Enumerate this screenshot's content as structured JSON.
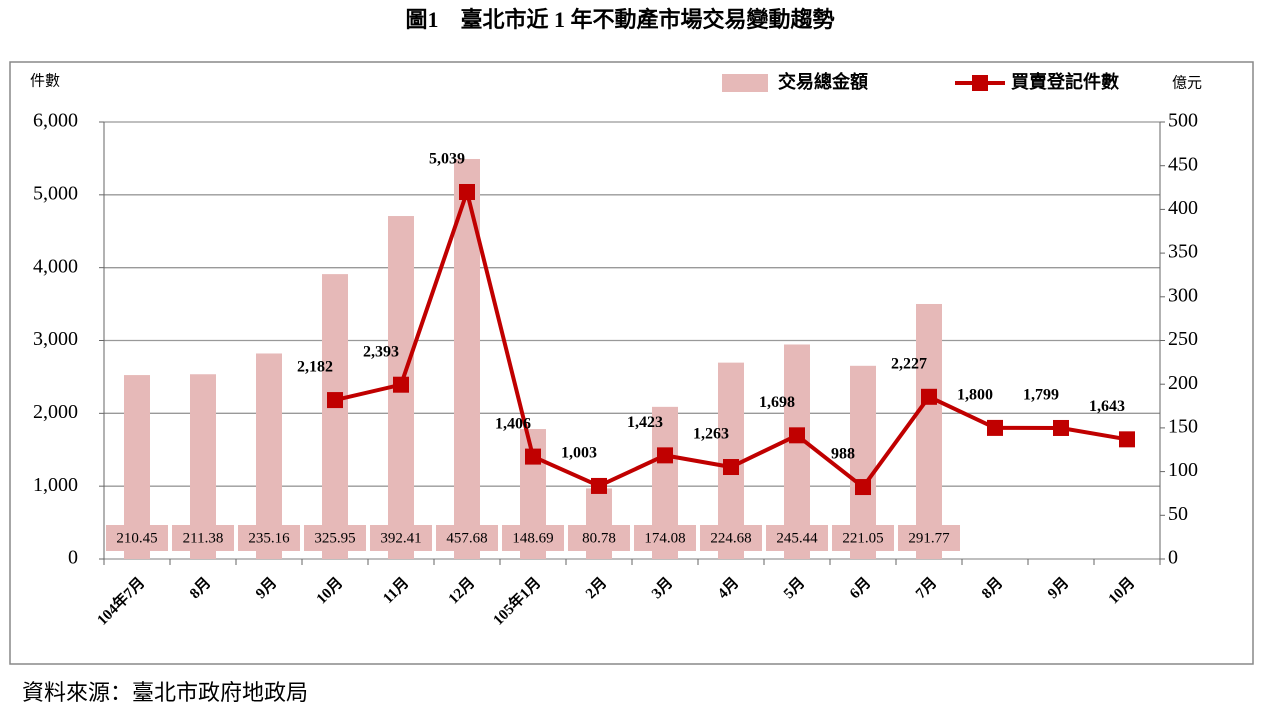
{
  "chart_data": {
    "type": "combo",
    "title": "圖1　臺北市近 1 年不動產市場交易變動趨勢",
    "source": "資料來源：臺北市政府地政局",
    "y_label": "件數",
    "y2_label": "億元",
    "categories": [
      "104年7月",
      "8月",
      "9月",
      "10月",
      "11月",
      "12月",
      "105年1月",
      "2月",
      "3月",
      "4月",
      "5月",
      "6月",
      "7月",
      "8月",
      "9月",
      "10月"
    ],
    "series": [
      {
        "name": "交易總金額",
        "type": "bar",
        "axis": "y2",
        "color": "#e6b9b8",
        "values": [
          210.45,
          211.38,
          235.16,
          325.95,
          392.41,
          457.68,
          148.69,
          80.78,
          174.08,
          224.68,
          245.44,
          221.05,
          291.77,
          null,
          null,
          null
        ]
      },
      {
        "name": "買賣登記件數",
        "type": "line",
        "color": "#c00000",
        "values": [
          null,
          null,
          null,
          2182,
          2393,
          5039,
          1406,
          1003,
          1423,
          1263,
          1698,
          988,
          2227,
          1800,
          1799,
          1643
        ],
        "value_labels": [
          null,
          null,
          null,
          "2,182",
          "2,393",
          "5,039",
          "1,406",
          "1,003",
          "1,423",
          "1,263",
          "1,698",
          "988",
          "2,227",
          "1,800",
          "1,799",
          "1,643"
        ]
      }
    ],
    "ylim": [
      0,
      6000
    ],
    "yticks": [
      0,
      {
        "value": 1000,
        "label": "1,000"
      },
      {
        "value": 2000,
        "label": "2,000"
      },
      {
        "value": 3000,
        "label": "3,000"
      },
      {
        "value": 4000,
        "label": "4,000"
      },
      {
        "value": 5000,
        "label": "5,000"
      },
      {
        "value": 6000,
        "label": "6,000"
      }
    ],
    "y2lim": [
      0,
      500
    ],
    "y2ticks": [
      0,
      50,
      100,
      150,
      200,
      250,
      300,
      350,
      400,
      450,
      500
    ],
    "grid": true,
    "legend": "top-right"
  }
}
